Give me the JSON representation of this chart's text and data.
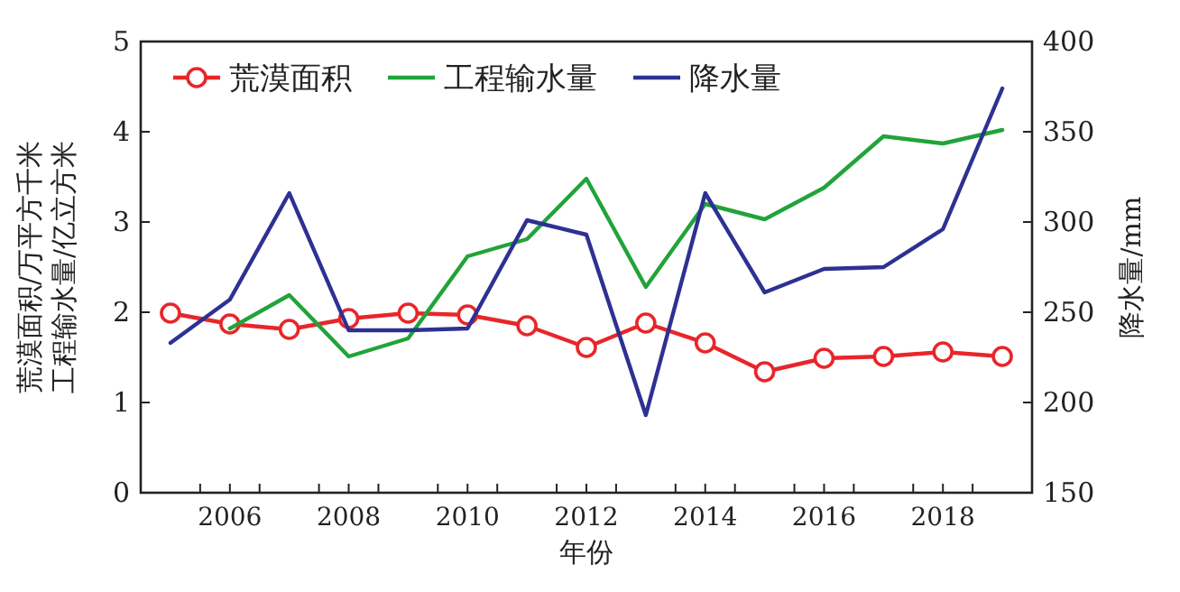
{
  "chart_data": {
    "type": "line",
    "xlabel": "年份",
    "ylabel": "荒漠面积/万平方千米工程输水量/亿立方米",
    "y2label": "降水量/mm",
    "x": [
      2005,
      2006,
      2007,
      2008,
      2009,
      2010,
      2011,
      2012,
      2013,
      2014,
      2015,
      2016,
      2017,
      2018,
      2019
    ],
    "series": [
      {
        "name": "荒漠面积",
        "color": "#e8262a",
        "marker": "circle",
        "values": [
          1.99,
          1.87,
          1.81,
          1.93,
          1.99,
          1.97,
          1.85,
          1.61,
          1.88,
          1.66,
          1.34,
          1.49,
          1.51,
          1.56,
          1.51
        ]
      },
      {
        "name": "工程输水量",
        "color": "#22a33a",
        "marker": "none",
        "values": [
          null,
          1.82,
          2.19,
          1.51,
          1.71,
          2.62,
          2.81,
          3.48,
          2.28,
          3.2,
          3.03,
          3.38,
          3.95,
          3.87,
          4.02
        ]
      },
      {
        "name": "降水量",
        "color": "#2e3192",
        "marker": "none",
        "axis": "y2",
        "values": [
          233,
          257,
          316,
          240,
          240,
          241,
          301,
          293,
          193,
          316,
          261,
          274,
          275,
          296,
          374
        ]
      }
    ],
    "xlim": [
      2004.5,
      2019.5
    ],
    "xticks": [
      {
        "value": 2005.5,
        "label": null
      },
      {
        "value": 2006,
        "label": "2006"
      },
      {
        "value": 2006.5,
        "label": null
      },
      {
        "value": 2007.5,
        "label": null
      },
      {
        "value": 2008,
        "label": "2008"
      },
      {
        "value": 2008.5,
        "label": null
      },
      {
        "value": 2009.5,
        "label": null
      },
      {
        "value": 2010,
        "label": "2010"
      },
      {
        "value": 2010.5,
        "label": null
      },
      {
        "value": 2011.5,
        "label": null
      },
      {
        "value": 2012,
        "label": "2012"
      },
      {
        "value": 2012.5,
        "label": null
      },
      {
        "value": 2013.5,
        "label": null
      },
      {
        "value": 2014,
        "label": "2014"
      },
      {
        "value": 2014.5,
        "label": null
      },
      {
        "value": 2015.5,
        "label": null
      },
      {
        "value": 2016,
        "label": "2016"
      },
      {
        "value": 2016.5,
        "label": null
      },
      {
        "value": 2017.5,
        "label": null
      },
      {
        "value": 2018,
        "label": "2018"
      },
      {
        "value": 2018.5,
        "label": null
      }
    ],
    "ylim": [
      0,
      5
    ],
    "yticks": [
      0,
      1,
      2,
      3,
      4,
      5
    ],
    "y2lim": [
      150,
      400
    ],
    "y2ticks": [
      150,
      200,
      250,
      300,
      350,
      400
    ],
    "legend": "top left",
    "line_style": "solid"
  }
}
